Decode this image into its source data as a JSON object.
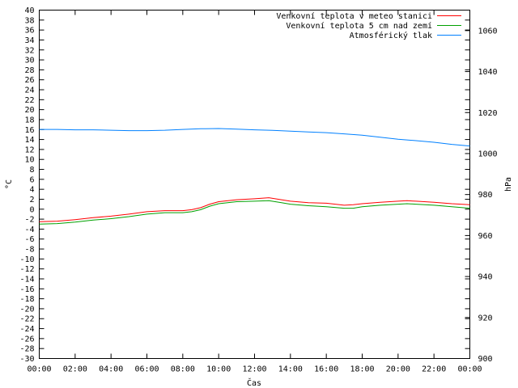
{
  "chart_data": {
    "type": "line",
    "xlabel": "Čas",
    "ylabel_left": "°C",
    "ylabel_right": "hPa",
    "ylim_left": [
      -30,
      40
    ],
    "ylim_right": [
      900,
      1070
    ],
    "xlim": [
      0,
      24
    ],
    "y_left_ticks": [
      -30,
      -28,
      -26,
      -24,
      -22,
      -20,
      -18,
      -16,
      -14,
      -12,
      -10,
      -8,
      -6,
      -4,
      -2,
      0,
      2,
      4,
      6,
      8,
      10,
      12,
      14,
      16,
      18,
      20,
      22,
      24,
      26,
      28,
      30,
      32,
      34,
      36,
      38,
      40
    ],
    "y_right_ticks": [
      900,
      920,
      940,
      960,
      980,
      1000,
      1020,
      1040,
      1060
    ],
    "x_ticks": [
      "00:00",
      "02:00",
      "04:00",
      "06:00",
      "08:00",
      "10:00",
      "12:00",
      "14:00",
      "16:00",
      "18:00",
      "20:00",
      "22:00",
      "00:00"
    ],
    "grid": false,
    "legend_position": "top-right",
    "series": [
      {
        "name": "Venkovní teplota v meteo stanici",
        "color": "#ff0000",
        "axis": "left",
        "x": [
          0,
          1,
          2,
          3,
          4,
          5,
          6,
          7,
          8,
          8.5,
          9,
          9.5,
          10,
          11,
          12,
          12.8,
          13.5,
          14,
          15,
          16,
          17,
          17.5,
          18,
          19,
          20,
          20.5,
          21,
          22,
          23,
          24
        ],
        "y": [
          -2.5,
          -2.4,
          -2.1,
          -1.7,
          -1.4,
          -1.0,
          -0.5,
          -0.3,
          -0.3,
          -0.1,
          0.3,
          1.0,
          1.5,
          1.9,
          2.1,
          2.3,
          1.9,
          1.6,
          1.3,
          1.2,
          0.8,
          0.9,
          1.1,
          1.4,
          1.6,
          1.7,
          1.6,
          1.4,
          1.1,
          0.9
        ]
      },
      {
        "name": "Venkovní teplota 5 cm nad zemí",
        "color": "#00a000",
        "axis": "left",
        "x": [
          0,
          1,
          2,
          3,
          4,
          5,
          6,
          7,
          8,
          8.5,
          9,
          9.5,
          10,
          11,
          12,
          12.8,
          13.5,
          14,
          15,
          16,
          17,
          17.5,
          18,
          19,
          20,
          20.5,
          21,
          22,
          23,
          24
        ],
        "y": [
          -3.0,
          -2.9,
          -2.6,
          -2.2,
          -1.9,
          -1.5,
          -1.0,
          -0.7,
          -0.7,
          -0.5,
          -0.1,
          0.6,
          1.1,
          1.5,
          1.6,
          1.7,
          1.3,
          1.0,
          0.7,
          0.5,
          0.2,
          0.2,
          0.5,
          0.8,
          1.0,
          1.1,
          1.0,
          0.8,
          0.5,
          0.2
        ]
      },
      {
        "name": "Atmosférický tlak",
        "color": "#0080ff",
        "axis": "right",
        "x": [
          0,
          1,
          2,
          3,
          4,
          5,
          6,
          7,
          8,
          9,
          10,
          11,
          12,
          13,
          14,
          15,
          16,
          17,
          18,
          19,
          20,
          21,
          22,
          23,
          24
        ],
        "y": [
          1011.8,
          1011.8,
          1011.6,
          1011.6,
          1011.4,
          1011.2,
          1011.2,
          1011.4,
          1011.8,
          1012.1,
          1012.2,
          1011.9,
          1011.6,
          1011.3,
          1010.9,
          1010.5,
          1010.2,
          1009.6,
          1009.0,
          1008.0,
          1007.0,
          1006.3,
          1005.5,
          1004.5,
          1003.7
        ]
      }
    ]
  }
}
